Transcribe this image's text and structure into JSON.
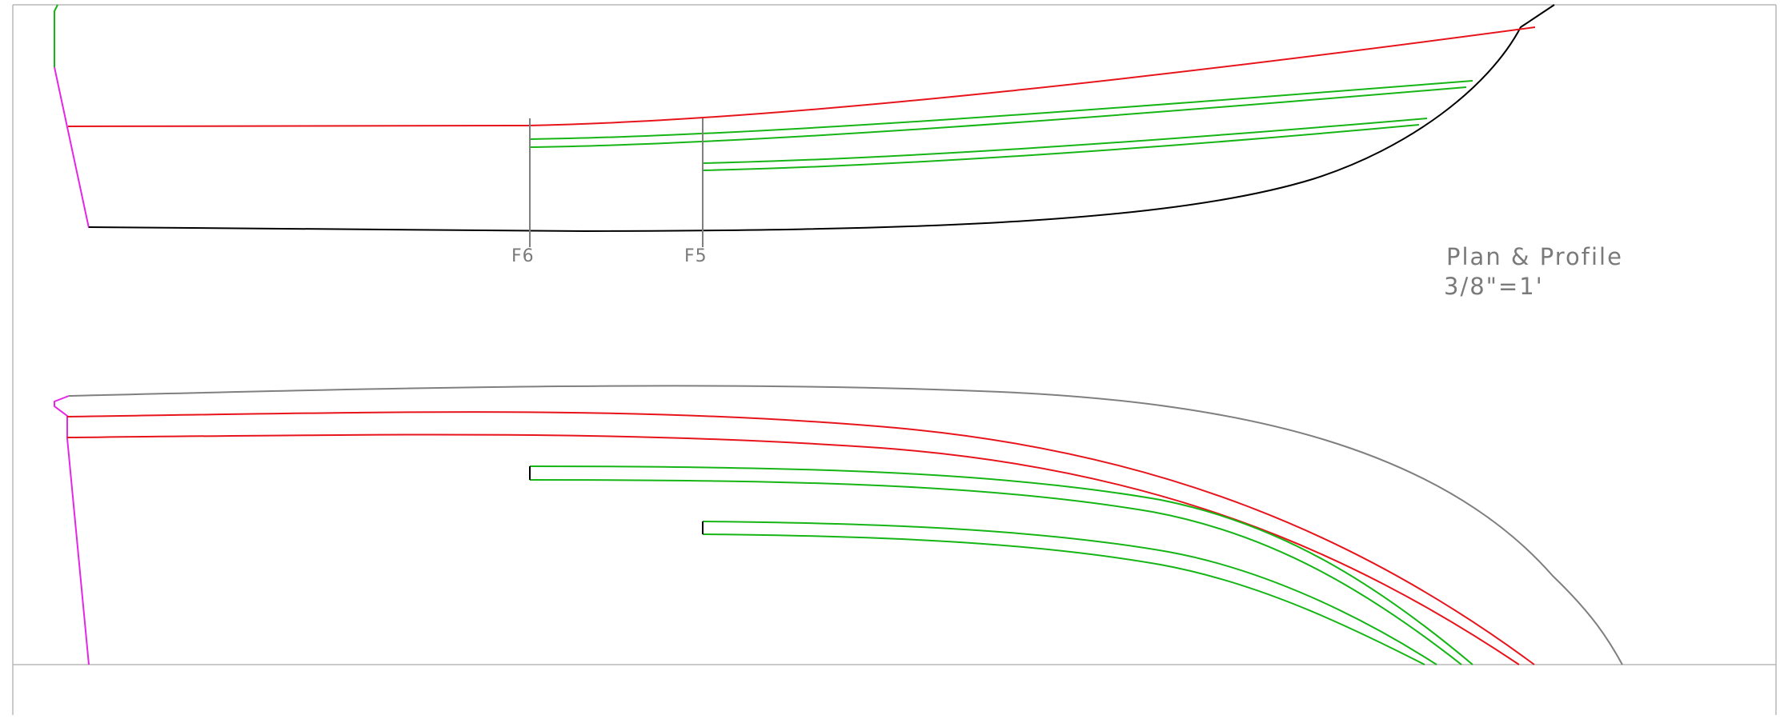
{
  "drawing": {
    "frame_labels": {
      "f6": "F6",
      "f5": "F5"
    },
    "title": {
      "line1": "Plan & Profile",
      "line2": "3/8\"=1'"
    }
  },
  "colors": {
    "background": "#ffffff",
    "border": "#b8b8b8",
    "sheer_line": "#e8141c",
    "stringer_line": "#15b515",
    "keel_line": "#000000",
    "transom_line": "#e626e6",
    "station_line": "#7f7f7f",
    "outline_line": "#7f7f7f",
    "label_text": "#7a7a7a"
  }
}
